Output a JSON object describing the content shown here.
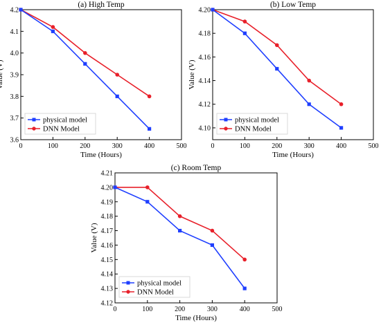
{
  "chart_data": [
    {
      "type": "line",
      "title": "(a) High Temp",
      "xlabel": "Time (Hours)",
      "ylabel": "Value (V)",
      "xlim": [
        0,
        500
      ],
      "ylim": [
        3.6,
        4.2
      ],
      "x_ticks": [
        "0",
        "100",
        "200",
        "300",
        "400",
        "500"
      ],
      "y_ticks": [
        "3.6",
        "3.7",
        "3.8",
        "3.9",
        "4.0",
        "4.1",
        "4.2"
      ],
      "legend_position": "bottom-left",
      "x": [
        0,
        100,
        200,
        300,
        400
      ],
      "series": [
        {
          "name": "physical model",
          "color": "#1f3fff",
          "marker": "square",
          "values": [
            4.2,
            4.1,
            3.95,
            3.8,
            3.65
          ]
        },
        {
          "name": "DNN Model",
          "color": "#e8202a",
          "marker": "circle",
          "values": [
            4.2,
            4.12,
            4.0,
            3.9,
            3.8
          ]
        }
      ]
    },
    {
      "type": "line",
      "title": "(b) Low Temp",
      "xlabel": "Time (Hours)",
      "ylabel": "Value (V)",
      "xlim": [
        0,
        500
      ],
      "ylim": [
        4.09,
        4.2
      ],
      "x_ticks": [
        "0",
        "100",
        "200",
        "300",
        "400",
        "500"
      ],
      "y_ticks": [
        "4.10",
        "4.12",
        "4.14",
        "4.16",
        "4.18",
        "4.20"
      ],
      "legend_position": "bottom-left",
      "x": [
        0,
        100,
        200,
        300,
        400
      ],
      "series": [
        {
          "name": "physical model",
          "color": "#1f3fff",
          "marker": "square",
          "values": [
            4.2,
            4.18,
            4.15,
            4.12,
            4.1
          ]
        },
        {
          "name": "DNN Model",
          "color": "#e8202a",
          "marker": "circle",
          "values": [
            4.2,
            4.19,
            4.17,
            4.14,
            4.12
          ]
        }
      ]
    },
    {
      "type": "line",
      "title": "(c) Room Temp",
      "xlabel": "Time (Hours)",
      "ylabel": "Value (V)",
      "xlim": [
        0,
        500
      ],
      "ylim": [
        4.12,
        4.21
      ],
      "x_ticks": [
        "0",
        "100",
        "200",
        "300",
        "400",
        "500"
      ],
      "y_ticks": [
        "4.12",
        "4.13",
        "4.14",
        "4.15",
        "4.16",
        "4.17",
        "4.18",
        "4.19",
        "4.20",
        "4.21"
      ],
      "legend_position": "bottom-left",
      "x": [
        0,
        100,
        200,
        300,
        400
      ],
      "series": [
        {
          "name": "physical model",
          "color": "#1f3fff",
          "marker": "square",
          "values": [
            4.2,
            4.19,
            4.17,
            4.16,
            4.13
          ]
        },
        {
          "name": "DNN Model",
          "color": "#e8202a",
          "marker": "circle",
          "values": [
            4.2,
            4.2,
            4.18,
            4.17,
            4.15
          ]
        }
      ]
    }
  ]
}
